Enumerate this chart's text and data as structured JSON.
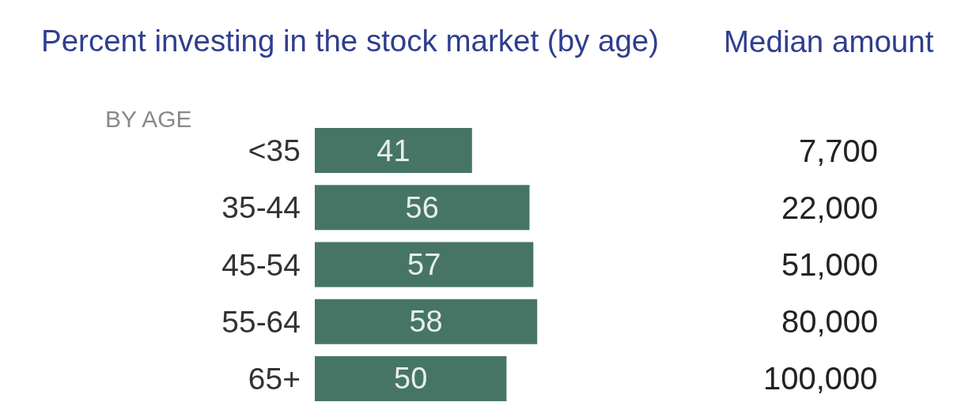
{
  "chart_data": {
    "type": "bar",
    "orientation": "horizontal",
    "title": "Percent investing in the stock market (by age)",
    "ylabel": "BY AGE",
    "categories": [
      "<35",
      "35-44",
      "45-54",
      "55-64",
      "65+"
    ],
    "values": [
      41,
      56,
      57,
      58,
      50
    ],
    "color": "#467566",
    "data_labels": true,
    "annotations": [
      "Median amount",
      "7,700",
      "22,000",
      "51,000",
      "80,000",
      "100,000"
    ]
  }
}
